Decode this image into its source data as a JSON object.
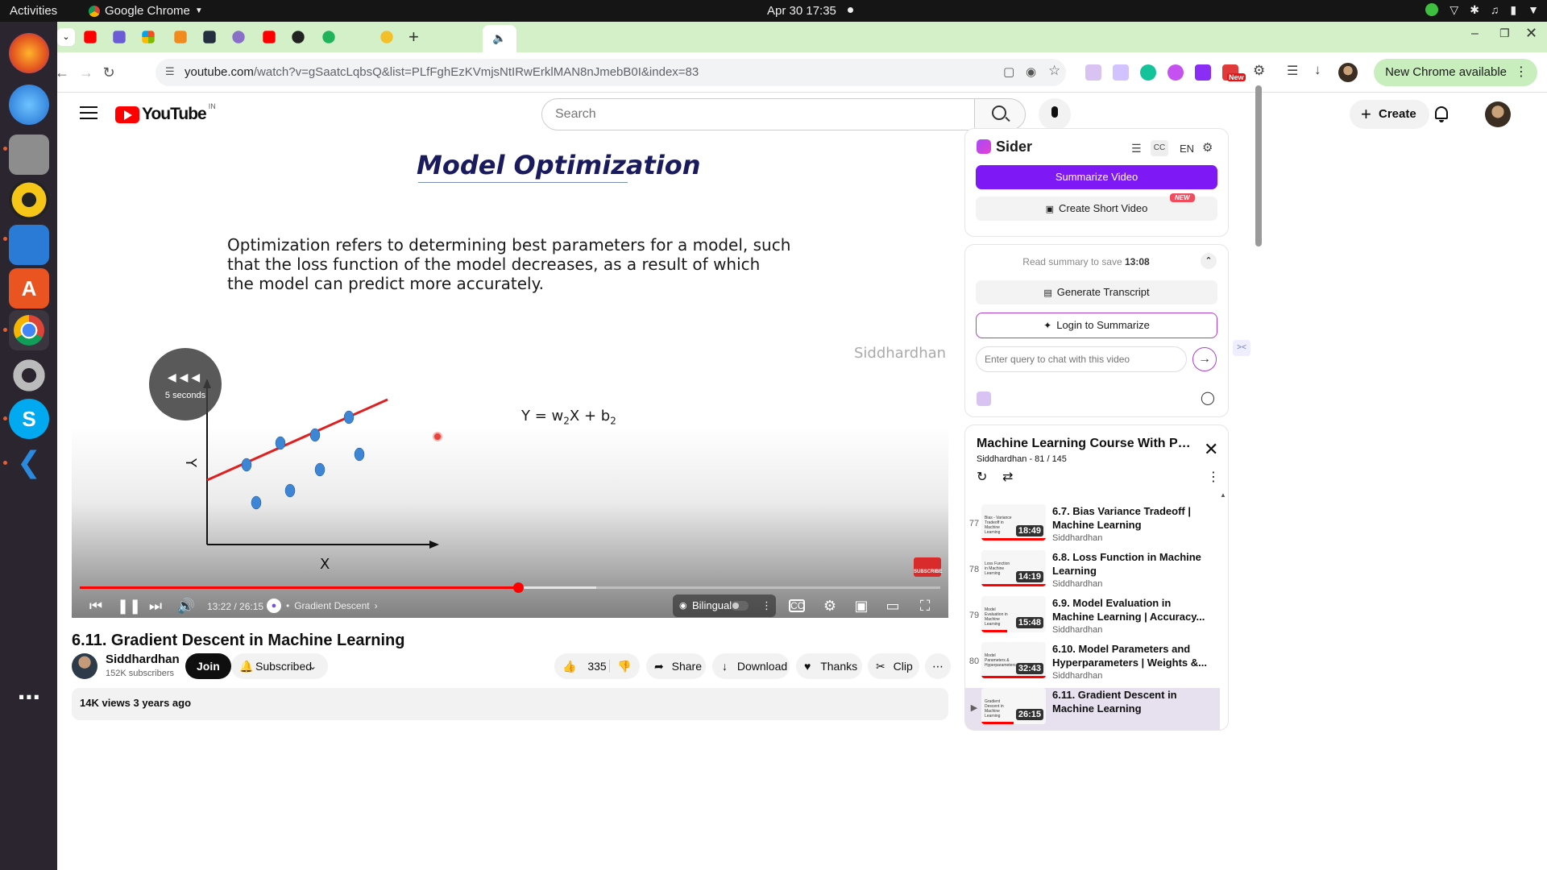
{
  "os": {
    "activities": "Activities",
    "app_name": "Google Chrome",
    "clock": "Apr 30  17:35"
  },
  "browser": {
    "url_host": "youtube.com",
    "url_rest": "/watch?v=gSaatcLqbsQ&list=PLfFghEzKVmjsNtIRwErklMAN8nJmebB0I&index=83",
    "new_chrome": "New Chrome available",
    "new_ext_badge": "New"
  },
  "youtube": {
    "logo_word": "YouTube",
    "region": "IN",
    "search_placeholder": "Search",
    "create_label": "Create"
  },
  "slide": {
    "title": "Model Optimization",
    "text": "Optimization refers to determining best parameters for a model, such that the loss function of the model decreases, as a result of which the model can predict more accurately.",
    "watermark": "Siddhardhan",
    "equation_main": "Y = w",
    "equation_sub1": "2",
    "equation_mid": "X + b",
    "equation_sub2": "2",
    "y_axis_label": "Y",
    "x_axis_label": "X"
  },
  "player": {
    "seek_overlay": "5 seconds",
    "current_time": "13:22",
    "duration": "26:15",
    "time_display": "13:22 / 26:15",
    "played_fraction": 0.509,
    "loaded_fraction": 0.6,
    "chapter": "Gradient Descent",
    "bilingual_label": "Bilingual",
    "subscribe_watermark": "SUBSCRIBE"
  },
  "video": {
    "title": "6.11. Gradient Descent in Machine Learning",
    "channel": "Siddhardhan",
    "subscribers": "152K subscribers",
    "join": "Join",
    "subscribed": "Subscribed",
    "likes": "335",
    "share": "Share",
    "download": "Download",
    "thanks": "Thanks",
    "clip": "Clip",
    "views_age": "14K views  3 years ago"
  },
  "sider": {
    "title": "Sider",
    "lang": "EN",
    "summarize": "Summarize Video",
    "short_video": "Create Short Video",
    "new_badge": "NEW",
    "read_summary_prefix": "Read summary to save ",
    "read_summary_time": "13:08",
    "generate_transcript": "Generate Transcript",
    "login_summarize": "Login to Summarize",
    "query_placeholder": "Enter query to chat with this video"
  },
  "playlist": {
    "title": "Machine Learning Course With Python",
    "subtitle": "Siddhardhan - 81 / 145",
    "items": [
      {
        "num": "77",
        "title": "6.7. Bias Variance Tradeoff | Machine Learning",
        "channel": "Siddhardhan",
        "duration": "18:49",
        "thumb": "Bias - Variance Tradeoff in Machine Learning",
        "watched": 1.0
      },
      {
        "num": "78",
        "title": "6.8. Loss Function in Machine Learning",
        "channel": "Siddhardhan",
        "duration": "14:19",
        "thumb": "Loss Function in Machine Learning",
        "watched": 1.0
      },
      {
        "num": "79",
        "title": "6.9. Model Evaluation in Machine Learning | Accuracy...",
        "channel": "Siddhardhan",
        "duration": "15:48",
        "thumb": "Model Evaluation in Machine Learning",
        "watched": 0.4
      },
      {
        "num": "80",
        "title": "6.10. Model Parameters and Hyperparameters | Weights &...",
        "channel": "Siddhardhan",
        "duration": "32:43",
        "thumb": "Model Parameters & Hyperparameters",
        "watched": 1.0
      },
      {
        "num": "▶",
        "title": "6.11. Gradient Descent in Machine Learning",
        "channel": "",
        "duration": "26:15",
        "thumb": "Gradient Descent in Machine Learning",
        "watched": 0.5
      }
    ]
  }
}
